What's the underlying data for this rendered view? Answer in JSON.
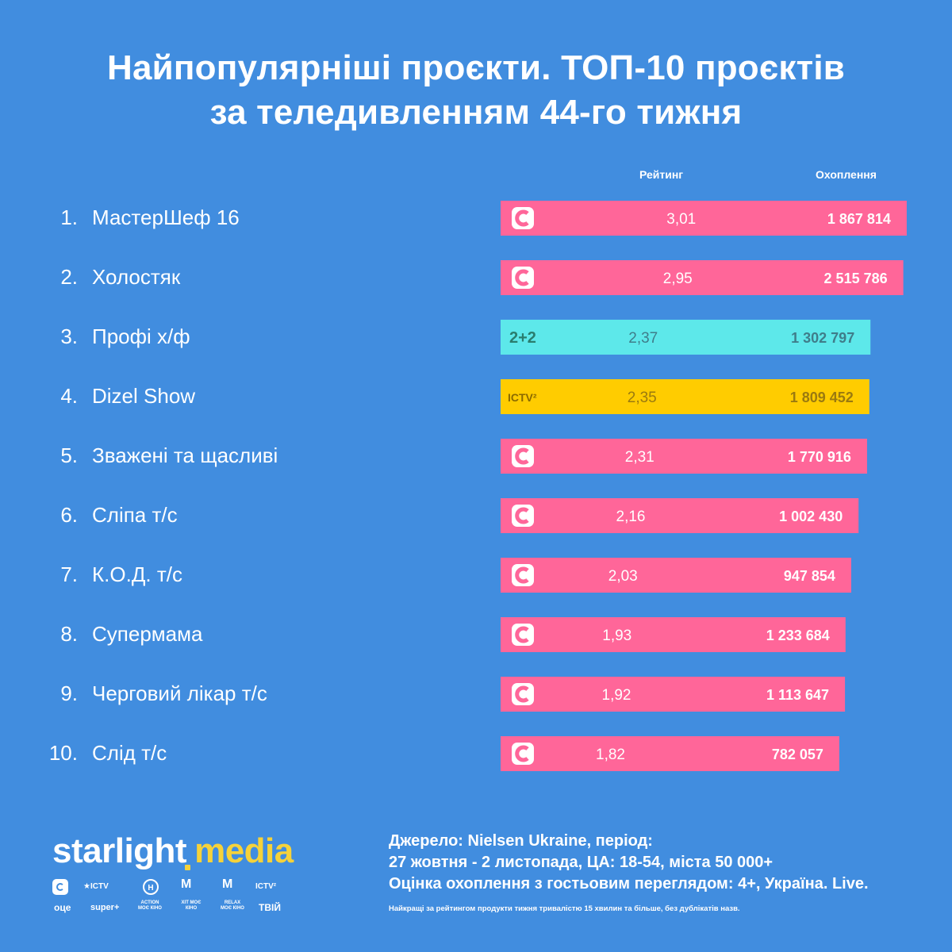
{
  "title_line1": "Найпопулярніші проєкти. ТОП-10 проєктів",
  "title_line2": "за теледивленням 44-го тижня",
  "chart_data": {
    "type": "bar",
    "column_headers": {
      "rating": "Рейтинг",
      "reach": "Охоплення"
    },
    "rows": [
      {
        "rank": "1.",
        "name": "МастерШеф 16",
        "channel": "СТБ",
        "rating": 3.01,
        "rating_label": "3,01",
        "reach": 1867814,
        "reach_label": "1 867 814"
      },
      {
        "rank": "2.",
        "name": "Холостяк",
        "channel": "СТБ",
        "rating": 2.95,
        "rating_label": "2,95",
        "reach": 2515786,
        "reach_label": "2 515 786"
      },
      {
        "rank": "3.",
        "name": "Профі х/ф",
        "channel": "2+2",
        "rating": 2.37,
        "rating_label": "2,37",
        "reach": 1302797,
        "reach_label": "1 302 797"
      },
      {
        "rank": "4.",
        "name": "Dizel Show",
        "channel": "ICTV2",
        "rating": 2.35,
        "rating_label": "2,35",
        "reach": 1809452,
        "reach_label": "1 809 452"
      },
      {
        "rank": "5.",
        "name": "Зважені та щасливі",
        "channel": "СТБ",
        "rating": 2.31,
        "rating_label": "2,31",
        "reach": 1770916,
        "reach_label": "1 770 916"
      },
      {
        "rank": "6.",
        "name": "Сліпа т/с",
        "channel": "СТБ",
        "rating": 2.16,
        "rating_label": "2,16",
        "reach": 1002430,
        "reach_label": "1 002 430"
      },
      {
        "rank": "7.",
        "name": "К.О.Д. т/с",
        "channel": "СТБ",
        "rating": 2.03,
        "rating_label": "2,03",
        "reach": 947854,
        "reach_label": "947 854"
      },
      {
        "rank": "8.",
        "name": "Супермама",
        "channel": "СТБ",
        "rating": 1.93,
        "rating_label": "1,93",
        "reach": 1233684,
        "reach_label": "1 233 684"
      },
      {
        "rank": "9.",
        "name": "Черговий лікар т/с",
        "channel": "СТБ",
        "rating": 1.92,
        "rating_label": "1,92",
        "reach": 1113647,
        "reach_label": "1 113 647"
      },
      {
        "rank": "10.",
        "name": "Слід т/с",
        "channel": "СТБ",
        "rating": 1.82,
        "rating_label": "1,82",
        "reach": 782057,
        "reach_label": "782 057"
      }
    ]
  },
  "channel_logos": {
    "СТБ": {
      "label": "",
      "bar_color": "#ff6699",
      "icon": "stb-c-icon"
    },
    "2+2": {
      "label": "2+2",
      "bar_color": "#5de8ea",
      "icon": "2plus2-logo"
    },
    "ICTV2": {
      "label": "ICTV²",
      "bar_color": "#ffcc00",
      "icon": "ictv2-logo"
    }
  },
  "brand": {
    "name_part1": "starlight",
    "name_part2": "media",
    "channel_marks": [
      "★ICTV",
      "ICTV²",
      "оце",
      "super+",
      "ACTION МОЄ КІНО",
      "ХІТ МОЄ КІНО",
      "RELAX МОЄ КІНО",
      "ТВІЙ"
    ]
  },
  "source": {
    "line1": "Джерело: Nielsen Ukraine, період:",
    "line2": "27 жовтня - 2 листопада, ЦА: 18-54, міста 50 000+",
    "line3": "Оцінка охоплення з гостьовим переглядом: 4+, Україна. Live.",
    "footnote": "Найкращі за рейтингом продукти тижня тривалістю 15 хвилин та більше, без дублікатів назв."
  }
}
